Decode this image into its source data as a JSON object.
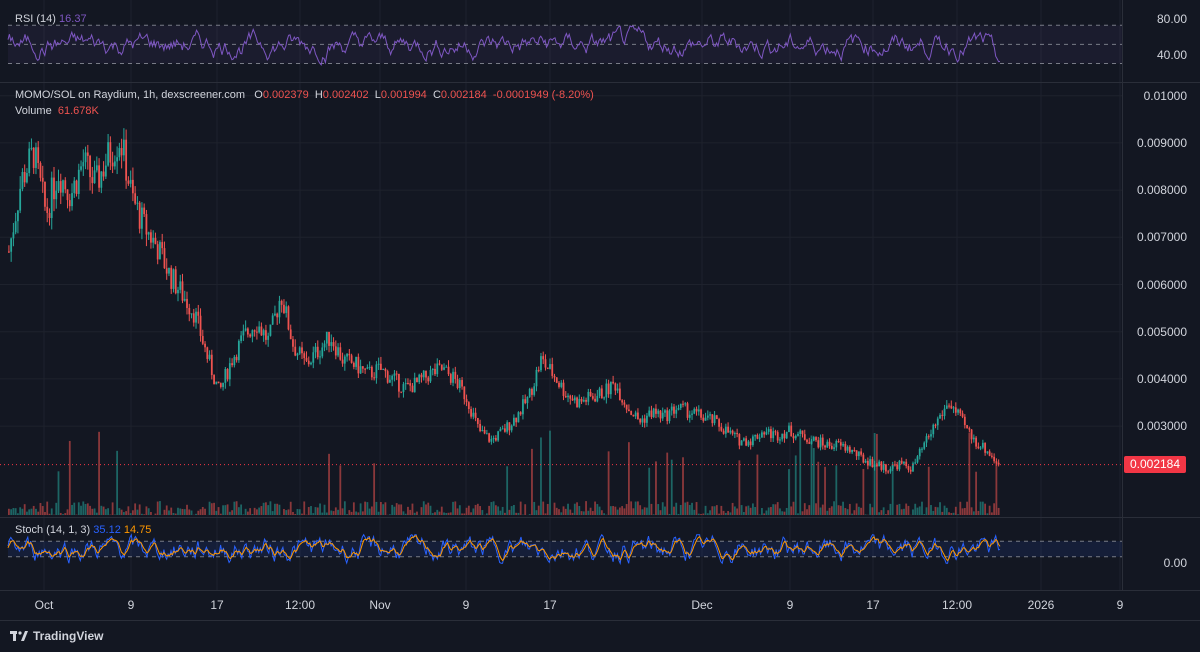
{
  "rsi": {
    "label": "RSI (14)",
    "value": "16.37",
    "levels": [
      "80.00",
      "40.00"
    ],
    "color": "#7e57c2"
  },
  "main": {
    "symbol": "MOMO/SOL on Raydium, 1h, dexscreener.com",
    "o_label": "O",
    "o_value": "0.002379",
    "h_label": "H",
    "h_value": "0.002402",
    "l_label": "L",
    "l_value": "0.001994",
    "c_label": "C",
    "c_value": "0.002184",
    "change": "-0.0001949 (-8.20%)",
    "volume_label": "Volume",
    "volume_value": "61.678K",
    "price_tag": "0.002184",
    "up_color": "#26a69a",
    "down_color": "#ef5350"
  },
  "stoch": {
    "label": "Stoch (14, 1, 3)",
    "k_value": "35.12",
    "d_value": "14.75",
    "k_color": "#2962ff",
    "d_color": "#ff9800",
    "zero_label": "0.00"
  },
  "footer": {
    "brand": "TradingView"
  },
  "chart_data": {
    "type": "candlestick",
    "title": "MOMO/SOL on Raydium, 1h, dexscreener.com",
    "x_tick_labels": [
      "Oct",
      "9",
      "17",
      "12:00",
      "Nov",
      "9",
      "17",
      "Dec",
      "9",
      "17",
      "12:00",
      "2026",
      "9"
    ],
    "y_tick_labels": [
      "0.01000",
      "0.009000",
      "0.008000",
      "0.007000",
      "0.006000",
      "0.005000",
      "0.004000",
      "0.003000"
    ],
    "ylim": [
      0.0019,
      0.0101
    ],
    "close_trend": [
      0.0067,
      0.0082,
      0.0088,
      0.0075,
      0.0084,
      0.0079,
      0.0086,
      0.0081,
      0.0087,
      0.0091,
      0.0078,
      0.0072,
      0.0068,
      0.0062,
      0.0058,
      0.0054,
      0.0045,
      0.0037,
      0.0044,
      0.0049,
      0.0052,
      0.0048,
      0.0058,
      0.0047,
      0.0043,
      0.0046,
      0.0049,
      0.0044,
      0.0043,
      0.0041,
      0.0042,
      0.004,
      0.0038,
      0.0039,
      0.0041,
      0.0042,
      0.004,
      0.0036,
      0.0029,
      0.0027,
      0.0029,
      0.0032,
      0.0036,
      0.0044,
      0.0041,
      0.0037,
      0.0035,
      0.0036,
      0.0037,
      0.0039,
      0.0034,
      0.0031,
      0.0033,
      0.0032,
      0.0034,
      0.0033,
      0.0032,
      0.0031,
      0.0029,
      0.0027,
      0.0027,
      0.0029,
      0.0028,
      0.0029,
      0.0028,
      0.0027,
      0.0026,
      0.0026,
      0.0025,
      0.0023,
      0.0022,
      0.0021,
      0.0022,
      0.0021,
      0.0026,
      0.0031,
      0.0035,
      0.0031,
      0.0027,
      0.0025,
      0.0021842
    ]
  }
}
